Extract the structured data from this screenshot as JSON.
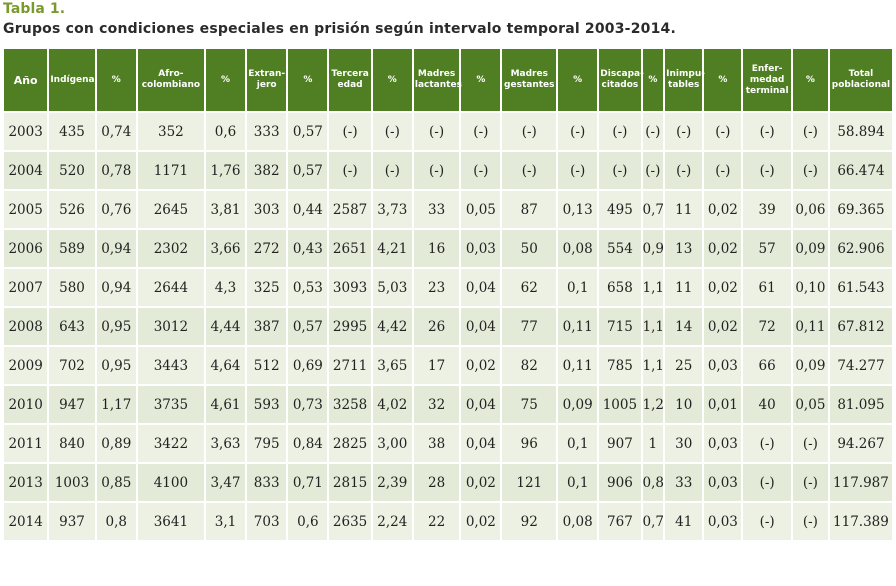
{
  "caption": {
    "label": "Tabla 1.",
    "title": "Grupos con condiciones especiales en prisión según intervalo temporal 2003-2014."
  },
  "table": {
    "headers": [
      "Año",
      "Indígena",
      "%",
      "Afro-\ncolombiano",
      "%",
      "Extran-\njero",
      "%",
      "Tercera\nedad",
      "%",
      "Madres\nlactantes",
      "%",
      "Madres\ngestantes",
      "%",
      "Discapa-\ncitados",
      "%",
      "Inimpu-\ntables",
      "%",
      "Enfer-\nmedad\nterminal",
      "%",
      "Total\npoblacional"
    ],
    "rows": [
      [
        "2003",
        "435",
        "0,74",
        "352",
        "0,6",
        "333",
        "0,57",
        "(-)",
        "(-)",
        "(-)",
        "(-)",
        "(-)",
        "(-)",
        "(-)",
        "(-)",
        "(-)",
        "(-)",
        "(-)",
        "(-)",
        "58.894"
      ],
      [
        "2004",
        "520",
        "0,78",
        "1171",
        "1,76",
        "382",
        "0,57",
        "(-)",
        "(-)",
        "(-)",
        "(-)",
        "(-)",
        "(-)",
        "(-)",
        "(-)",
        "(-)",
        "(-)",
        "(-)",
        "(-)",
        "66.474"
      ],
      [
        "2005",
        "526",
        "0,76",
        "2645",
        "3,81",
        "303",
        "0,44",
        "2587",
        "3,73",
        "33",
        "0,05",
        "87",
        "0,13",
        "495",
        "0,7",
        "11",
        "0,02",
        "39",
        "0,06",
        "69.365"
      ],
      [
        "2006",
        "589",
        "0,94",
        "2302",
        "3,66",
        "272",
        "0,43",
        "2651",
        "4,21",
        "16",
        "0,03",
        "50",
        "0,08",
        "554",
        "0,9",
        "13",
        "0,02",
        "57",
        "0,09",
        "62.906"
      ],
      [
        "2007",
        "580",
        "0,94",
        "2644",
        "4,3",
        "325",
        "0,53",
        "3093",
        "5,03",
        "23",
        "0,04",
        "62",
        "0,1",
        "658",
        "1,1",
        "11",
        "0,02",
        "61",
        "0,10",
        "61.543"
      ],
      [
        "2008",
        "643",
        "0,95",
        "3012",
        "4,44",
        "387",
        "0,57",
        "2995",
        "4,42",
        "26",
        "0,04",
        "77",
        "0,11",
        "715",
        "1,1",
        "14",
        "0,02",
        "72",
        "0,11",
        "67.812"
      ],
      [
        "2009",
        "702",
        "0,95",
        "3443",
        "4,64",
        "512",
        "0,69",
        "2711",
        "3,65",
        "17",
        "0,02",
        "82",
        "0,11",
        "785",
        "1,1",
        "25",
        "0,03",
        "66",
        "0,09",
        "74.277"
      ],
      [
        "2010",
        "947",
        "1,17",
        "3735",
        "4,61",
        "593",
        "0,73",
        "3258",
        "4,02",
        "32",
        "0,04",
        "75",
        "0,09",
        "1005",
        "1,2",
        "10",
        "0,01",
        "40",
        "0,05",
        "81.095"
      ],
      [
        "2011",
        "840",
        "0,89",
        "3422",
        "3,63",
        "795",
        "0,84",
        "2825",
        "3,00",
        "38",
        "0,04",
        "96",
        "0,1",
        "907",
        "1",
        "30",
        "0,03",
        "(-)",
        "(-)",
        "94.267"
      ],
      [
        "2013",
        "1003",
        "0,85",
        "4100",
        "3,47",
        "833",
        "0,71",
        "2815",
        "2,39",
        "28",
        "0,02",
        "121",
        "0,1",
        "906",
        "0,8",
        "33",
        "0,03",
        "(-)",
        "(-)",
        "117.987"
      ],
      [
        "2014",
        "937",
        "0,8",
        "3641",
        "3,1",
        "703",
        "0,6",
        "2635",
        "2,24",
        "22",
        "0,02",
        "92",
        "0,08",
        "767",
        "0,7",
        "41",
        "0,03",
        "(-)",
        "(-)",
        "117.389"
      ]
    ]
  }
}
